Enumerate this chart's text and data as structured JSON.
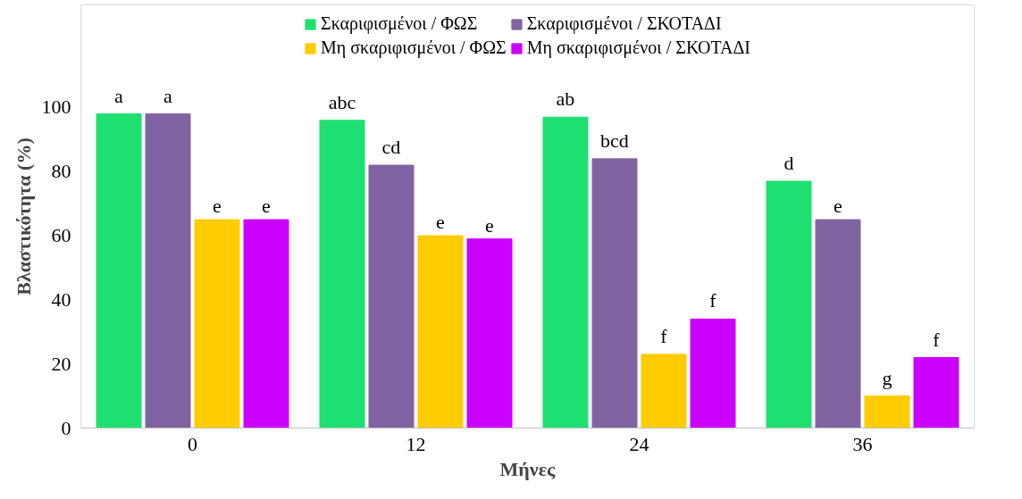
{
  "chart_data": {
    "type": "bar",
    "xlabel": "Μήνες",
    "ylabel": "Βλαστικότητα (%)",
    "categories": [
      "0",
      "12",
      "24",
      "36"
    ],
    "ylim": [
      0,
      132
    ],
    "yticks": [
      0,
      20,
      40,
      60,
      80,
      100
    ],
    "grid": false,
    "legend": "top",
    "series": [
      {
        "name": "Σκαριφισμένοι / ΦΩΣ",
        "color": "#1ee070",
        "values": [
          98,
          96,
          97,
          77
        ],
        "value_labels": [
          "a",
          "abc",
          "ab",
          "d"
        ]
      },
      {
        "name": "Σκαριφισμένοι / ΣΚΟΤΑΔΙ",
        "color": "#8064a2",
        "values": [
          98,
          82,
          84,
          65
        ],
        "value_labels": [
          "a",
          "cd",
          "bcd",
          "e"
        ]
      },
      {
        "name": "Μη σκαριφισμένοι / ΦΩΣ",
        "color": "#ffcc00",
        "values": [
          65,
          60,
          23,
          10
        ],
        "value_labels": [
          "e",
          "e",
          "f",
          "g"
        ]
      },
      {
        "name": "Μη σκαριφισμένοι / ΣΚΟΤΑΔΙ",
        "color": "#cc00ff",
        "values": [
          65,
          59,
          34,
          22
        ],
        "value_labels": [
          "e",
          "e",
          "f",
          "f"
        ]
      }
    ]
  }
}
